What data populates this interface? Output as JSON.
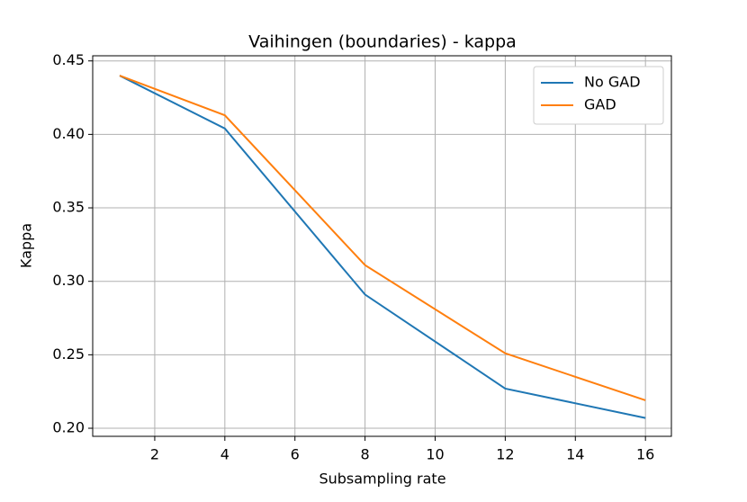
{
  "chart_data": {
    "type": "line",
    "title": "Vaihingen (boundaries) - kappa",
    "x_label": "Subsampling rate",
    "y_label": "Kappa",
    "x": [
      1,
      4,
      8,
      12,
      16
    ],
    "series": [
      {
        "name": "No GAD",
        "color": "#1f77b4",
        "values": [
          0.44,
          0.404,
          0.291,
          0.227,
          0.207
        ]
      },
      {
        "name": "GAD",
        "color": "#ff7f0e",
        "values": [
          0.44,
          0.413,
          0.311,
          0.251,
          0.219
        ]
      }
    ],
    "xlim": [
      0.23,
      16.74
    ],
    "ylim": [
      0.1945,
      0.4535
    ],
    "xticks": [
      2,
      4,
      6,
      8,
      10,
      12,
      14,
      16
    ],
    "yticks": [
      {
        "value": 0.2,
        "label": "0.20"
      },
      {
        "value": 0.25,
        "label": "0.25"
      },
      {
        "value": 0.3,
        "label": "0.30"
      },
      {
        "value": 0.35,
        "label": "0.35"
      },
      {
        "value": 0.4,
        "label": "0.40"
      },
      {
        "value": 0.45,
        "label": "0.45"
      }
    ],
    "grid": true,
    "legend": "upper right"
  }
}
